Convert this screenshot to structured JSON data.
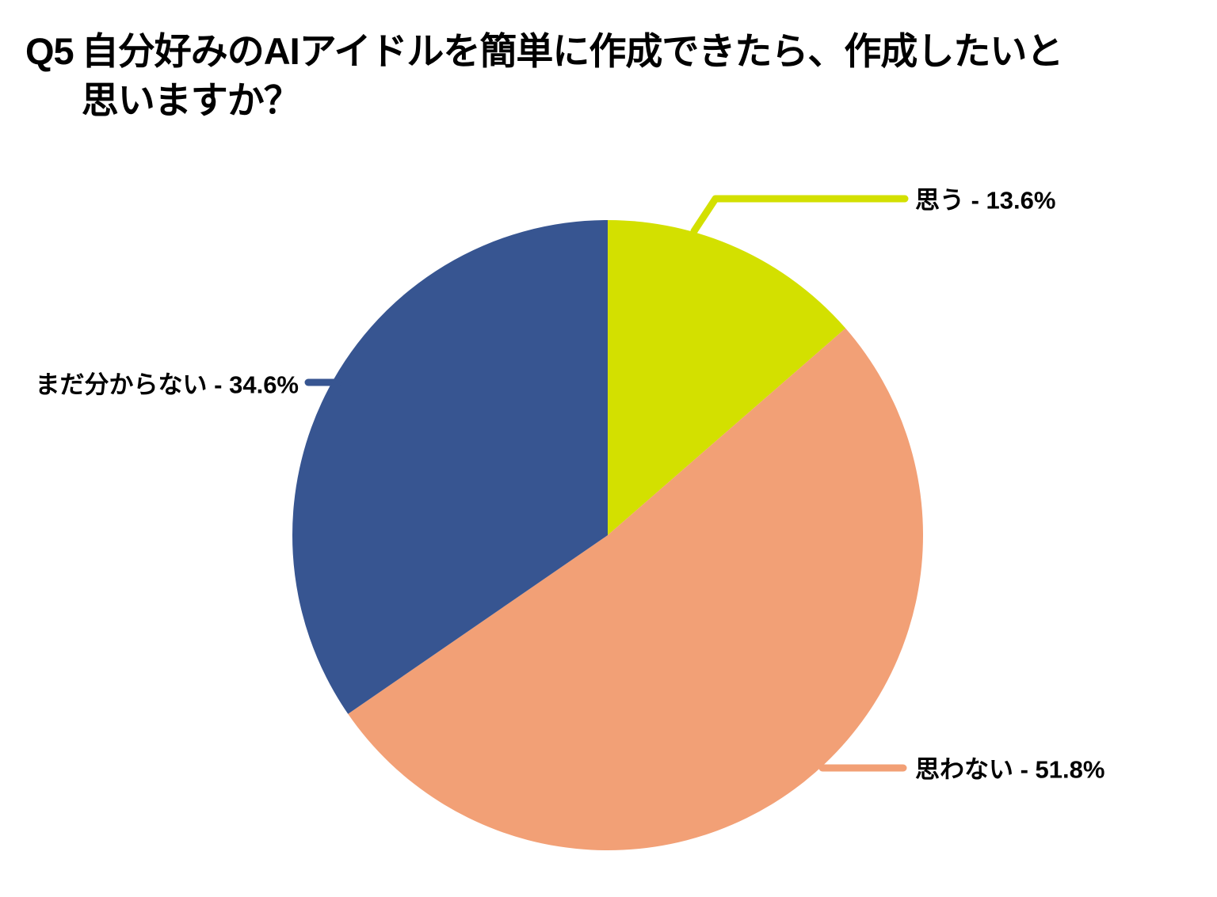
{
  "title": {
    "prefix": "Q5",
    "line1": "自分好みのAIアイドルを簡単に作成できたら、作成したいと",
    "line2": "思いますか？"
  },
  "chart_data": {
    "type": "pie",
    "title": "Q5 自分好みのAIアイドルを簡単に作成できたら、作成したいと思いますか？",
    "start_angle_deg_from_top": 0,
    "direction": "clockwise",
    "legend_position": "none",
    "background_color": "#ffffff",
    "text_color": "#000000",
    "slices": [
      {
        "label": "思う",
        "value_pct": 13.6,
        "color": "#d3e000",
        "display_label": "思う - 13.6%"
      },
      {
        "label": "思わない",
        "value_pct": 51.8,
        "color": "#f2a076",
        "display_label": "思わない - 51.8%"
      },
      {
        "label": "まだ分からない",
        "value_pct": 34.6,
        "color": "#375591",
        "display_label": "まだ分からない - 34.6%"
      }
    ]
  }
}
